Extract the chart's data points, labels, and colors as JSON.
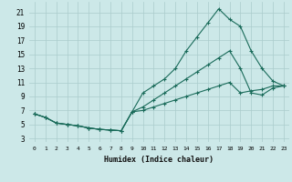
{
  "xlabel": "Humidex (Indice chaleur)",
  "background_color": "#cce8e8",
  "grid_color": "#aacccc",
  "line_color": "#1a6b5a",
  "xlim": [
    -0.5,
    23.5
  ],
  "ylim": [
    2.5,
    22.5
  ],
  "yticks": [
    3,
    5,
    7,
    9,
    11,
    13,
    15,
    17,
    19,
    21
  ],
  "xticks": [
    0,
    1,
    2,
    3,
    4,
    5,
    6,
    7,
    8,
    9,
    10,
    11,
    12,
    13,
    14,
    15,
    16,
    17,
    18,
    19,
    20,
    21,
    22,
    23
  ],
  "line1_x": [
    0,
    1,
    2,
    3,
    4,
    5,
    6,
    7,
    8,
    9,
    10,
    11,
    12,
    13,
    14,
    15,
    16,
    17,
    18,
    19,
    20,
    21,
    22,
    23
  ],
  "line1_y": [
    6.5,
    6.0,
    5.2,
    5.0,
    4.8,
    4.5,
    4.3,
    4.2,
    4.1,
    6.8,
    9.5,
    10.5,
    11.5,
    13.0,
    15.5,
    17.5,
    19.5,
    21.5,
    20.0,
    19.0,
    15.5,
    13.0,
    11.2,
    10.5
  ],
  "line2_x": [
    0,
    1,
    2,
    3,
    4,
    5,
    6,
    7,
    8,
    9,
    10,
    11,
    12,
    13,
    14,
    15,
    16,
    17,
    18,
    19,
    20,
    21,
    22,
    23
  ],
  "line2_y": [
    6.5,
    6.0,
    5.2,
    5.0,
    4.8,
    4.5,
    4.3,
    4.2,
    4.1,
    6.8,
    7.5,
    8.5,
    9.5,
    10.5,
    11.5,
    12.5,
    13.5,
    14.5,
    15.5,
    13.0,
    9.5,
    9.2,
    10.2,
    10.5
  ],
  "line3_x": [
    0,
    1,
    2,
    3,
    4,
    5,
    6,
    7,
    8,
    9,
    10,
    11,
    12,
    13,
    14,
    15,
    16,
    17,
    18,
    19,
    20,
    21,
    22,
    23
  ],
  "line3_y": [
    6.5,
    6.0,
    5.2,
    5.0,
    4.8,
    4.5,
    4.3,
    4.2,
    4.1,
    6.8,
    7.0,
    7.5,
    8.0,
    8.5,
    9.0,
    9.5,
    10.0,
    10.5,
    11.0,
    9.5,
    9.8,
    10.0,
    10.5,
    10.5
  ]
}
